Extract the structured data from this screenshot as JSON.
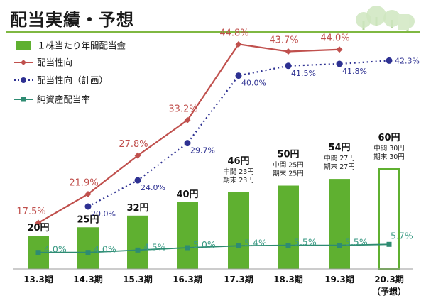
{
  "header": {
    "title": "配当実績・予想"
  },
  "legend": [
    {
      "key": "bar",
      "label": "１株当たり年間配当金"
    },
    {
      "key": "payout",
      "label": "配当性向"
    },
    {
      "key": "plan",
      "label": "配当性向（計画）"
    },
    {
      "key": "doe",
      "label": "純資産配当率"
    }
  ],
  "colors": {
    "bar": "#5fb030",
    "payout": "#c0504d",
    "plan": "#2e3192",
    "doe": "#2e8b72",
    "title_rule": "#7fb842"
  },
  "chart_data": {
    "type": "bar",
    "categories": [
      "13.3期",
      "14.3期",
      "15.3期",
      "16.3期",
      "17.3期",
      "18.3期",
      "19.3期",
      "20.3期"
    ],
    "category_note": {
      "index": 7,
      "text": "（予想）"
    },
    "dividend": {
      "values": [
        20,
        25,
        32,
        40,
        46,
        50,
        54,
        60
      ],
      "labels": [
        "20円",
        "25円",
        "32円",
        "40円",
        "46円",
        "50円",
        "54円",
        "60円"
      ],
      "forecast_index": 7
    },
    "breakdown": [
      null,
      null,
      null,
      null,
      [
        "中間 23円",
        "期末 23円"
      ],
      [
        "中間 25円",
        "期末 25円"
      ],
      [
        "中間 27円",
        "期末 27円"
      ],
      [
        "中間 30円",
        "期末 30円"
      ]
    ],
    "payout_ratio": {
      "values": [
        17.5,
        21.9,
        27.8,
        33.2,
        44.8,
        43.7,
        44.0,
        null
      ],
      "labels": [
        "17.5%",
        "21.9%",
        "27.8%",
        "33.2%",
        "44.8%",
        "43.7%",
        "44.0%",
        null
      ]
    },
    "payout_ratio_plan": {
      "values": [
        null,
        20.0,
        24.0,
        29.7,
        40.0,
        41.5,
        41.8,
        42.3
      ],
      "labels": [
        null,
        "20.0%",
        "24.0%",
        "29.7%",
        "40.0%",
        "41.5%",
        "41.8%",
        "42.3%"
      ]
    },
    "doe": {
      "values": [
        4.0,
        4.0,
        4.5,
        5.0,
        5.4,
        5.5,
        5.5,
        5.7
      ],
      "labels": [
        "4.0%",
        "4.0%",
        "4.5%",
        "5.0%",
        "5.4%",
        "5.5%",
        "5.5%",
        "5.7%"
      ]
    }
  }
}
